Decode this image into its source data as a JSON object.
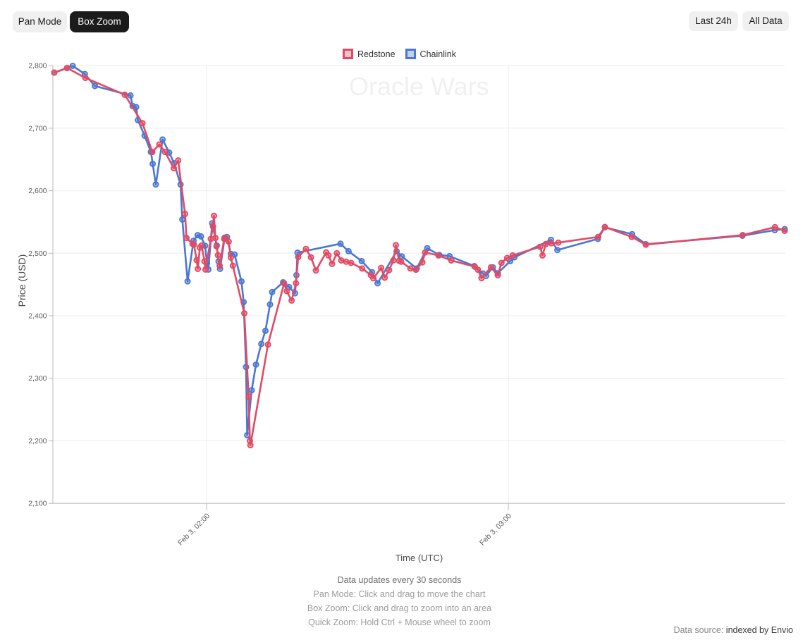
{
  "toolbar": {
    "pan_mode": "Pan Mode",
    "box_zoom": "Box Zoom",
    "last_24h": "Last 24h",
    "all_data": "All Data"
  },
  "legend": [
    {
      "label": "Redstone",
      "color": "#e24a64"
    },
    {
      "label": "Chainlink",
      "color": "#4a78d0"
    }
  ],
  "watermark": "Oracle Wars",
  "axes": {
    "y_title": "Price (USD)",
    "x_title": "Time (UTC)"
  },
  "footer": {
    "line1": "Data updates every 30 seconds",
    "line2": "Pan Mode: Click and drag to move the chart",
    "line3": "Box Zoom: Click and drag to zoom into an area",
    "line4": "Quick Zoom: Hold Ctrl + Mouse wheel to zoom"
  },
  "datasource": {
    "label": "Data source: ",
    "link": "indexed by Envio"
  },
  "chart_data": {
    "type": "line",
    "title": "Oracle Wars",
    "xlabel": "Time (UTC)",
    "ylabel": "Price (USD)",
    "x_domain": [
      "01:29:26",
      "03:55:02"
    ],
    "ylim": [
      2100,
      2800
    ],
    "y_ticks": [
      {
        "value": 2100,
        "label": "2,100"
      },
      {
        "value": 2200,
        "label": "2,200"
      },
      {
        "value": 2300,
        "label": "2,300"
      },
      {
        "value": 2400,
        "label": "2,400"
      },
      {
        "value": 2500,
        "label": "2,500"
      },
      {
        "value": 2600,
        "label": "2,600"
      },
      {
        "value": 2700,
        "label": "2,700"
      },
      {
        "value": 2800,
        "label": "2,800"
      }
    ],
    "x_ticks": [
      {
        "time": "02:00:00",
        "label": "Feb 3, 02:00"
      },
      {
        "time": "03:00:00",
        "label": "Feb 3, 03:00"
      }
    ],
    "grid": true,
    "legend_position": "top-center",
    "series": [
      {
        "name": "Redstone",
        "color": "#e24a64",
        "points": [
          {
            "t": "01:29:43",
            "v": 2789
          },
          {
            "t": "01:32:15",
            "v": 2796.5
          },
          {
            "t": "01:35:53",
            "v": 2780.5
          },
          {
            "t": "01:43:44",
            "v": 2753.5
          },
          {
            "t": "01:47:15",
            "v": 2708
          },
          {
            "t": "01:49:12",
            "v": 2662
          },
          {
            "t": "01:50:36",
            "v": 2674
          },
          {
            "t": "01:51:44",
            "v": 2662
          },
          {
            "t": "01:53:29",
            "v": 2636
          },
          {
            "t": "01:54:21",
            "v": 2648.5
          },
          {
            "t": "01:55:43",
            "v": 2563
          },
          {
            "t": "01:56:00",
            "v": 2524.5
          },
          {
            "t": "01:57:12",
            "v": 2515
          },
          {
            "t": "01:57:29",
            "v": 2514
          },
          {
            "t": "01:58:02",
            "v": 2489
          },
          {
            "t": "01:58:15",
            "v": 2475
          },
          {
            "t": "01:58:40",
            "v": 2509
          },
          {
            "t": "01:59:01",
            "v": 2512.5
          },
          {
            "t": "01:59:35",
            "v": 2487
          },
          {
            "t": "01:59:47",
            "v": 2474
          },
          {
            "t": "02:00:50",
            "v": 2523
          },
          {
            "t": "02:01:16",
            "v": 2543
          },
          {
            "t": "02:01:28",
            "v": 2560
          },
          {
            "t": "02:01:45",
            "v": 2524.5
          },
          {
            "t": "02:01:58",
            "v": 2511
          },
          {
            "t": "02:02:15",
            "v": 2497
          },
          {
            "t": "02:02:36",
            "v": 2480
          },
          {
            "t": "02:03:30",
            "v": 2523
          },
          {
            "t": "02:03:47",
            "v": 2524
          },
          {
            "t": "02:04:24",
            "v": 2518.7
          },
          {
            "t": "02:04:49",
            "v": 2493
          },
          {
            "t": "02:05:13",
            "v": 2480
          },
          {
            "t": "02:07:30",
            "v": 2404
          },
          {
            "t": "02:08:22",
            "v": 2271
          },
          {
            "t": "02:08:37",
            "v": 2200
          },
          {
            "t": "02:08:43",
            "v": 2193
          },
          {
            "t": "02:12:12",
            "v": 2354
          },
          {
            "t": "02:15:25",
            "v": 2452
          },
          {
            "t": "02:15:58",
            "v": 2439.3
          },
          {
            "t": "02:16:54",
            "v": 2424.4
          },
          {
            "t": "02:17:46",
            "v": 2452
          },
          {
            "t": "02:18:13",
            "v": 2494
          },
          {
            "t": "02:19:46",
            "v": 2507
          },
          {
            "t": "02:20:45",
            "v": 2493.5
          },
          {
            "t": "02:21:44",
            "v": 2472.5
          },
          {
            "t": "02:23:46",
            "v": 2501.5
          },
          {
            "t": "02:24:15",
            "v": 2496.5
          },
          {
            "t": "02:24:57",
            "v": 2483
          },
          {
            "t": "02:25:54",
            "v": 2500
          },
          {
            "t": "02:26:47",
            "v": 2488.5
          },
          {
            "t": "02:27:45",
            "v": 2486.5
          },
          {
            "t": "02:28:44",
            "v": 2484.6
          },
          {
            "t": "02:30:57",
            "v": 2475.6
          },
          {
            "t": "02:32:40",
            "v": 2464.8
          },
          {
            "t": "02:33:09",
            "v": 2460
          },
          {
            "t": "02:34:43",
            "v": 2476.6
          },
          {
            "t": "02:35:25",
            "v": 2461
          },
          {
            "t": "02:36:17",
            "v": 2473
          },
          {
            "t": "02:37:09",
            "v": 2488.7
          },
          {
            "t": "02:37:38",
            "v": 2513
          },
          {
            "t": "02:38:16",
            "v": 2488
          },
          {
            "t": "02:38:41",
            "v": 2486.5
          },
          {
            "t": "02:40:31",
            "v": 2475.6
          },
          {
            "t": "02:41:38",
            "v": 2473.6
          },
          {
            "t": "02:42:54",
            "v": 2485.5
          },
          {
            "t": "02:43:27",
            "v": 2501.2
          },
          {
            "t": "02:46:07",
            "v": 2496.5
          },
          {
            "t": "02:48:39",
            "v": 2488.5
          },
          {
            "t": "02:53:21",
            "v": 2478.5
          },
          {
            "t": "02:53:58",
            "v": 2473.6
          },
          {
            "t": "02:54:40",
            "v": 2460.2
          },
          {
            "t": "02:56:33",
            "v": 2477.6
          },
          {
            "t": "02:57:54",
            "v": 2464.8
          },
          {
            "t": "02:58:38",
            "v": 2484.6
          },
          {
            "t": "02:59:45",
            "v": 2492.4
          },
          {
            "t": "03:00:51",
            "v": 2496.5
          },
          {
            "t": "03:06:19",
            "v": 2510.4
          },
          {
            "t": "03:06:48",
            "v": 2496.5
          },
          {
            "t": "03:07:26",
            "v": 2514.6
          },
          {
            "t": "03:08:33",
            "v": 2516
          },
          {
            "t": "03:09:57",
            "v": 2517
          },
          {
            "t": "03:17:51",
            "v": 2526.2
          },
          {
            "t": "03:19:12",
            "v": 2542.1
          },
          {
            "t": "03:24:32",
            "v": 2526.2
          },
          {
            "t": "03:27:20",
            "v": 2513.8
          },
          {
            "t": "03:46:36",
            "v": 2529.1
          },
          {
            "t": "03:53:01",
            "v": 2541.7
          },
          {
            "t": "03:54:57",
            "v": 2535.8
          }
        ]
      },
      {
        "name": "Chainlink",
        "color": "#4a78d0",
        "points": [
          {
            "t": "01:29:43",
            "v": 2789
          },
          {
            "t": "01:32:15",
            "v": 2796
          },
          {
            "t": "01:33:22",
            "v": 2799.7
          },
          {
            "t": "01:35:47",
            "v": 2786.7
          },
          {
            "t": "01:37:47",
            "v": 2767.5
          },
          {
            "t": "01:44:52",
            "v": 2752.4
          },
          {
            "t": "01:45:17",
            "v": 2735.5
          },
          {
            "t": "01:45:59",
            "v": 2733.8
          },
          {
            "t": "01:46:20",
            "v": 2713
          },
          {
            "t": "01:47:40",
            "v": 2688
          },
          {
            "t": "01:48:56",
            "v": 2662
          },
          {
            "t": "01:49:17",
            "v": 2643
          },
          {
            "t": "01:49:54",
            "v": 2610
          },
          {
            "t": "01:51:15",
            "v": 2682
          },
          {
            "t": "01:52:34",
            "v": 2661
          },
          {
            "t": "01:53:33",
            "v": 2644
          },
          {
            "t": "01:54:49",
            "v": 2610
          },
          {
            "t": "01:55:10",
            "v": 2554
          },
          {
            "t": "01:56:13",
            "v": 2455
          },
          {
            "t": "01:57:24",
            "v": 2520
          },
          {
            "t": "01:58:14",
            "v": 2529
          },
          {
            "t": "01:58:53",
            "v": 2527
          },
          {
            "t": "01:59:42",
            "v": 2512
          },
          {
            "t": "02:00:05",
            "v": 2484
          },
          {
            "t": "02:00:21",
            "v": 2474
          },
          {
            "t": "02:01:07",
            "v": 2548
          },
          {
            "t": "02:02:02",
            "v": 2512.5
          },
          {
            "t": "02:02:23",
            "v": 2487
          },
          {
            "t": "02:02:40",
            "v": 2475
          },
          {
            "t": "02:03:36",
            "v": 2525
          },
          {
            "t": "02:04:04",
            "v": 2526
          },
          {
            "t": "02:04:49",
            "v": 2499
          },
          {
            "t": "02:05:34",
            "v": 2498
          },
          {
            "t": "02:06:56",
            "v": 2455
          },
          {
            "t": "02:07:22",
            "v": 2422
          },
          {
            "t": "02:07:51",
            "v": 2318
          },
          {
            "t": "02:08:04",
            "v": 2209
          },
          {
            "t": "02:08:58",
            "v": 2281
          },
          {
            "t": "02:09:49",
            "v": 2322
          },
          {
            "t": "02:10:52",
            "v": 2355
          },
          {
            "t": "02:11:42",
            "v": 2376
          },
          {
            "t": "02:12:37",
            "v": 2418
          },
          {
            "t": "02:13:02",
            "v": 2438
          },
          {
            "t": "02:15:13",
            "v": 2453.5
          },
          {
            "t": "02:16:24",
            "v": 2446
          },
          {
            "t": "02:17:35",
            "v": 2436
          },
          {
            "t": "02:17:52",
            "v": 2465
          },
          {
            "t": "02:18:05",
            "v": 2501
          },
          {
            "t": "02:26:38",
            "v": 2515.2
          },
          {
            "t": "02:28:14",
            "v": 2503.3
          },
          {
            "t": "02:30:50",
            "v": 2487.5
          },
          {
            "t": "02:32:55",
            "v": 2469.7
          },
          {
            "t": "02:34:00",
            "v": 2452
          },
          {
            "t": "02:37:47",
            "v": 2503.3
          },
          {
            "t": "02:38:50",
            "v": 2495
          },
          {
            "t": "02:41:47",
            "v": 2475.6
          },
          {
            "t": "02:43:52",
            "v": 2508.1
          },
          {
            "t": "02:46:16",
            "v": 2497.3
          },
          {
            "t": "02:48:19",
            "v": 2495.4
          },
          {
            "t": "02:53:14",
            "v": 2479.5
          },
          {
            "t": "02:54:57",
            "v": 2467.6
          },
          {
            "t": "02:55:34",
            "v": 2463.7
          },
          {
            "t": "02:56:55",
            "v": 2477.6
          },
          {
            "t": "02:57:54",
            "v": 2468
          },
          {
            "t": "03:00:22",
            "v": 2487.5
          },
          {
            "t": "03:01:13",
            "v": 2493.5
          },
          {
            "t": "03:08:29",
            "v": 2521.5
          },
          {
            "t": "03:09:45",
            "v": 2505.2
          },
          {
            "t": "03:17:48",
            "v": 2523
          },
          {
            "t": "03:19:12",
            "v": 2541.5
          },
          {
            "t": "03:24:37",
            "v": 2530.5
          },
          {
            "t": "03:27:20",
            "v": 2514.5
          },
          {
            "t": "03:46:33",
            "v": 2528
          },
          {
            "t": "03:52:59",
            "v": 2537
          },
          {
            "t": "03:54:57",
            "v": 2538.7
          }
        ]
      }
    ]
  }
}
